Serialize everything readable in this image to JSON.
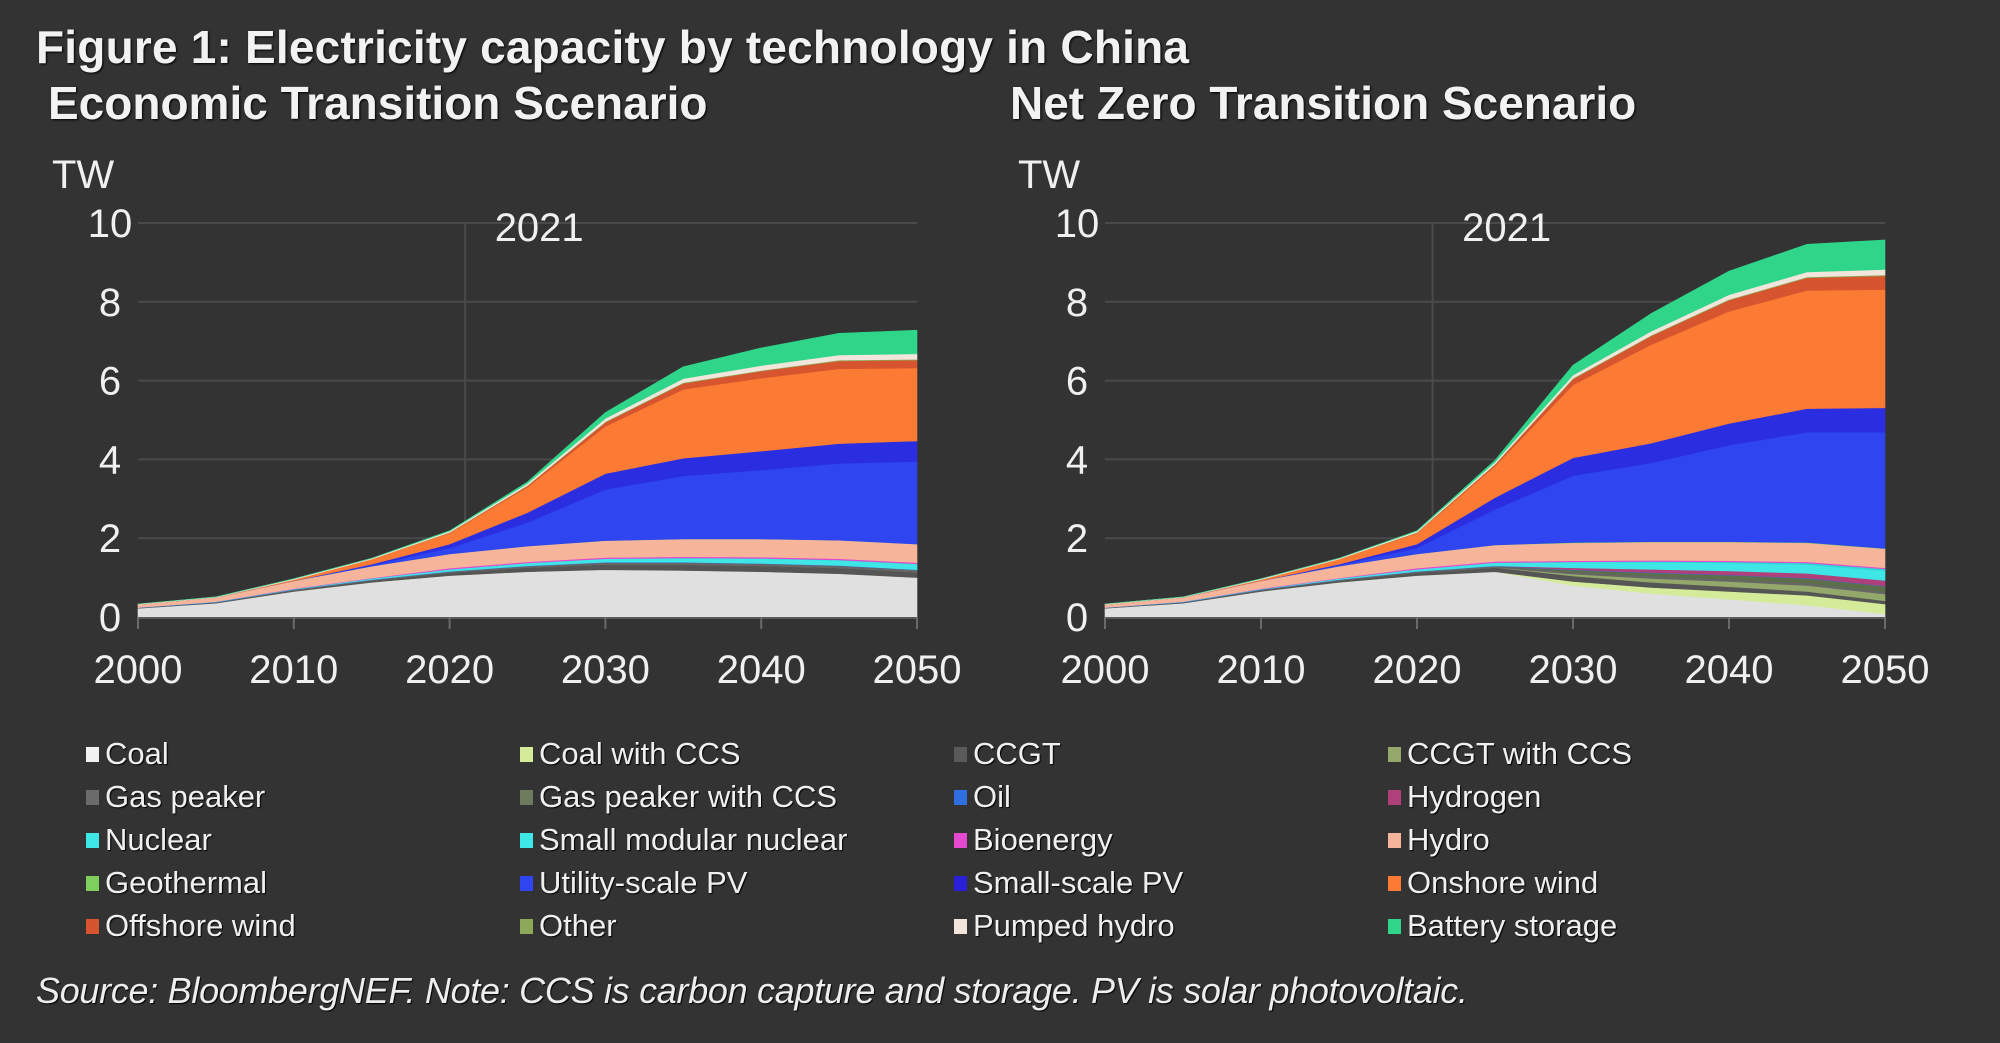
{
  "figure_title": "Figure 1: Electricity capacity by technology in China",
  "source_note": "Source: BloombergNEF.  Note: CCS is carbon capture and storage. PV is solar photovoltaic.",
  "chart_data": [
    {
      "type": "area",
      "stacked": true,
      "title": "Economic Transition Scenario",
      "ylabel": "TW",
      "xlabel": "",
      "ylim": [
        0,
        10
      ],
      "xlim": [
        2000,
        2050
      ],
      "yticks": [
        "0",
        "2",
        "4",
        "6",
        "8",
        "10"
      ],
      "xticks": [
        "2000",
        "2010",
        "2020",
        "2030",
        "2040",
        "2050"
      ],
      "annotation": {
        "x": 2021,
        "label": "2021"
      },
      "grid": true,
      "x": [
        2000,
        2005,
        2010,
        2015,
        2020,
        2025,
        2030,
        2035,
        2040,
        2045,
        2050
      ],
      "series": [
        {
          "name": "Coal",
          "color": "#e0e0e0",
          "values": [
            0.22,
            0.35,
            0.65,
            0.88,
            1.05,
            1.15,
            1.2,
            1.18,
            1.15,
            1.1,
            1.0
          ]
        },
        {
          "name": "Coal with CCS",
          "color": "#d4ec9a",
          "values": [
            0,
            0,
            0,
            0,
            0,
            0,
            0,
            0,
            0,
            0,
            0
          ]
        },
        {
          "name": "CCGT",
          "color": "#555555",
          "values": [
            0.01,
            0.02,
            0.03,
            0.05,
            0.08,
            0.11,
            0.14,
            0.15,
            0.15,
            0.15,
            0.14
          ]
        },
        {
          "name": "CCGT with CCS",
          "color": "#93a86a",
          "values": [
            0,
            0,
            0,
            0,
            0,
            0,
            0,
            0,
            0,
            0,
            0
          ]
        },
        {
          "name": "Gas peaker",
          "color": "#666666",
          "values": [
            0,
            0,
            0.01,
            0.01,
            0.02,
            0.03,
            0.04,
            0.05,
            0.05,
            0.05,
            0.05
          ]
        },
        {
          "name": "Gas peaker with CCS",
          "color": "#5c6e4a",
          "values": [
            0,
            0,
            0,
            0,
            0,
            0,
            0,
            0,
            0,
            0,
            0
          ]
        },
        {
          "name": "Oil",
          "color": "#2f6fe0",
          "values": [
            0.01,
            0.01,
            0.01,
            0.01,
            0.01,
            0.01,
            0.01,
            0.01,
            0.01,
            0.01,
            0.01
          ]
        },
        {
          "name": "Hydrogen",
          "color": "#b0407a",
          "values": [
            0,
            0,
            0,
            0,
            0,
            0,
            0,
            0,
            0,
            0,
            0
          ]
        },
        {
          "name": "Nuclear",
          "color": "#3ee6e6",
          "values": [
            0,
            0.01,
            0.01,
            0.03,
            0.05,
            0.07,
            0.09,
            0.1,
            0.12,
            0.13,
            0.14
          ]
        },
        {
          "name": "Small modular nuclear",
          "color": "#2fd6d6",
          "values": [
            0,
            0,
            0,
            0,
            0,
            0,
            0,
            0.01,
            0.01,
            0.01,
            0.01
          ]
        },
        {
          "name": "Bioenergy",
          "color": "#e44ad0",
          "values": [
            0,
            0,
            0.01,
            0.01,
            0.03,
            0.03,
            0.03,
            0.03,
            0.03,
            0.03,
            0.03
          ]
        },
        {
          "name": "Hydro",
          "color": "#f6b59a",
          "values": [
            0.08,
            0.11,
            0.2,
            0.3,
            0.36,
            0.4,
            0.43,
            0.45,
            0.46,
            0.47,
            0.47
          ]
        },
        {
          "name": "Geothermal",
          "color": "#7fcf5c",
          "values": [
            0,
            0,
            0,
            0,
            0,
            0,
            0,
            0,
            0,
            0,
            0
          ]
        },
        {
          "name": "Utility-scale PV",
          "color": "#2e45f0",
          "values": [
            0,
            0,
            0.0,
            0.03,
            0.15,
            0.6,
            1.3,
            1.6,
            1.75,
            1.95,
            2.1
          ]
        },
        {
          "name": "Small-scale PV",
          "color": "#2a2ee0",
          "values": [
            0,
            0,
            0,
            0.02,
            0.1,
            0.25,
            0.4,
            0.45,
            0.48,
            0.5,
            0.52
          ]
        },
        {
          "name": "Onshore wind",
          "color": "#fb7b34",
          "values": [
            0,
            0,
            0.03,
            0.13,
            0.28,
            0.65,
            1.2,
            1.75,
            1.85,
            1.9,
            1.85
          ]
        },
        {
          "name": "Offshore wind",
          "color": "#d7552e",
          "values": [
            0,
            0,
            0,
            0,
            0.01,
            0.03,
            0.1,
            0.15,
            0.18,
            0.2,
            0.2
          ]
        },
        {
          "name": "Other",
          "color": "#8ea85a",
          "values": [
            0,
            0,
            0,
            0,
            0.01,
            0.01,
            0.02,
            0.02,
            0.02,
            0.02,
            0.02
          ]
        },
        {
          "name": "Pumped hydro",
          "color": "#f2e6dc",
          "values": [
            0.01,
            0.01,
            0.02,
            0.02,
            0.03,
            0.05,
            0.08,
            0.1,
            0.12,
            0.13,
            0.14
          ]
        },
        {
          "name": "Battery storage",
          "color": "#2fd68a",
          "values": [
            0,
            0,
            0,
            0,
            0.01,
            0.04,
            0.15,
            0.3,
            0.45,
            0.55,
            0.6
          ]
        }
      ]
    },
    {
      "type": "area",
      "stacked": true,
      "title": "Net Zero Transition Scenario",
      "ylabel": "TW",
      "xlabel": "",
      "ylim": [
        0,
        10
      ],
      "xlim": [
        2000,
        2050
      ],
      "yticks": [
        "0",
        "2",
        "4",
        "6",
        "8",
        "10"
      ],
      "xticks": [
        "2000",
        "2010",
        "2020",
        "2030",
        "2040",
        "2050"
      ],
      "annotation": {
        "x": 2021,
        "label": "2021"
      },
      "grid": true,
      "x": [
        2000,
        2005,
        2010,
        2015,
        2020,
        2025,
        2030,
        2035,
        2040,
        2045,
        2050
      ],
      "series": [
        {
          "name": "Coal",
          "color": "#e0e0e0",
          "values": [
            0.22,
            0.35,
            0.65,
            0.88,
            1.05,
            1.15,
            0.8,
            0.6,
            0.45,
            0.3,
            0.08
          ]
        },
        {
          "name": "Coal with CCS",
          "color": "#d4ec9a",
          "values": [
            0,
            0,
            0,
            0,
            0,
            0,
            0.1,
            0.15,
            0.2,
            0.25,
            0.25
          ]
        },
        {
          "name": "CCGT",
          "color": "#555555",
          "values": [
            0.01,
            0.02,
            0.03,
            0.05,
            0.08,
            0.11,
            0.14,
            0.13,
            0.12,
            0.1,
            0.08
          ]
        },
        {
          "name": "CCGT with CCS",
          "color": "#93a86a",
          "values": [
            0,
            0,
            0,
            0,
            0,
            0,
            0.05,
            0.1,
            0.13,
            0.15,
            0.17
          ]
        },
        {
          "name": "Gas peaker",
          "color": "#666666",
          "values": [
            0,
            0,
            0.01,
            0.01,
            0.02,
            0.03,
            0.05,
            0.06,
            0.06,
            0.06,
            0.06
          ]
        },
        {
          "name": "Gas peaker with CCS",
          "color": "#5c6e4a",
          "values": [
            0,
            0,
            0,
            0,
            0,
            0,
            0.05,
            0.08,
            0.1,
            0.12,
            0.14
          ]
        },
        {
          "name": "Oil",
          "color": "#2f6fe0",
          "values": [
            0.01,
            0.01,
            0.01,
            0.01,
            0.01,
            0.01,
            0.01,
            0.01,
            0.01,
            0.01,
            0.01
          ]
        },
        {
          "name": "Hydrogen",
          "color": "#b0407a",
          "values": [
            0,
            0,
            0,
            0,
            0,
            0,
            0.05,
            0.08,
            0.1,
            0.12,
            0.14
          ]
        },
        {
          "name": "Nuclear",
          "color": "#3ee6e6",
          "values": [
            0,
            0.01,
            0.01,
            0.03,
            0.05,
            0.08,
            0.14,
            0.18,
            0.2,
            0.22,
            0.24
          ]
        },
        {
          "name": "Small modular nuclear",
          "color": "#2fd6d6",
          "values": [
            0,
            0,
            0,
            0,
            0,
            0,
            0.01,
            0.02,
            0.03,
            0.04,
            0.05
          ]
        },
        {
          "name": "Bioenergy",
          "color": "#e44ad0",
          "values": [
            0,
            0,
            0.01,
            0.01,
            0.03,
            0.03,
            0.03,
            0.03,
            0.03,
            0.03,
            0.03
          ]
        },
        {
          "name": "Hydro",
          "color": "#f6b59a",
          "values": [
            0.08,
            0.11,
            0.2,
            0.3,
            0.36,
            0.42,
            0.45,
            0.46,
            0.47,
            0.48,
            0.48
          ]
        },
        {
          "name": "Geothermal",
          "color": "#7fcf5c",
          "values": [
            0,
            0,
            0,
            0,
            0,
            0,
            0.01,
            0.01,
            0.01,
            0.01,
            0.01
          ]
        },
        {
          "name": "Utility-scale PV",
          "color": "#2e45f0",
          "values": [
            0,
            0,
            0.0,
            0.03,
            0.15,
            0.9,
            1.7,
            2.0,
            2.45,
            2.8,
            2.95
          ]
        },
        {
          "name": "Small-scale PV",
          "color": "#2a2ee0",
          "values": [
            0,
            0,
            0,
            0.02,
            0.1,
            0.3,
            0.45,
            0.5,
            0.55,
            0.6,
            0.62
          ]
        },
        {
          "name": "Onshore wind",
          "color": "#fb7b34",
          "values": [
            0,
            0,
            0.03,
            0.13,
            0.28,
            0.8,
            1.85,
            2.5,
            2.85,
            3.0,
            3.0
          ]
        },
        {
          "name": "Offshore wind",
          "color": "#d7552e",
          "values": [
            0,
            0,
            0,
            0,
            0.01,
            0.04,
            0.15,
            0.22,
            0.28,
            0.32,
            0.35
          ]
        },
        {
          "name": "Other",
          "color": "#8ea85a",
          "values": [
            0,
            0,
            0,
            0,
            0.01,
            0.01,
            0.02,
            0.02,
            0.02,
            0.02,
            0.02
          ]
        },
        {
          "name": "Pumped hydro",
          "color": "#f2e6dc",
          "values": [
            0.01,
            0.01,
            0.02,
            0.02,
            0.03,
            0.05,
            0.08,
            0.1,
            0.12,
            0.13,
            0.14
          ]
        },
        {
          "name": "Battery storage",
          "color": "#2fd68a",
          "values": [
            0,
            0,
            0,
            0,
            0.01,
            0.05,
            0.25,
            0.45,
            0.6,
            0.7,
            0.75
          ]
        }
      ]
    }
  ],
  "legend": [
    {
      "label": "Coal",
      "color": "#f2f2f2"
    },
    {
      "label": "Coal with CCS",
      "color": "#d4ec9a"
    },
    {
      "label": "CCGT",
      "color": "#5a5a5a"
    },
    {
      "label": "CCGT with CCS",
      "color": "#93a86a"
    },
    {
      "label": "Gas peaker",
      "color": "#6b6b6b"
    },
    {
      "label": "Gas peaker with CCS",
      "color": "#6e7a5c"
    },
    {
      "label": "Oil",
      "color": "#2f6fe0"
    },
    {
      "label": "Hydrogen",
      "color": "#b0407a"
    },
    {
      "label": "Nuclear",
      "color": "#3ee6e6"
    },
    {
      "label": "Small modular nuclear",
      "color": "#3ee6e6"
    },
    {
      "label": "Bioenergy",
      "color": "#e44ad0"
    },
    {
      "label": "Hydro",
      "color": "#f6b59a"
    },
    {
      "label": "Geothermal",
      "color": "#7fcf5c"
    },
    {
      "label": "Utility-scale PV",
      "color": "#2e45f0"
    },
    {
      "label": "Small-scale PV",
      "color": "#2a20d8"
    },
    {
      "label": "Onshore wind",
      "color": "#fb7b34"
    },
    {
      "label": "Offshore wind",
      "color": "#d7552e"
    },
    {
      "label": "Other",
      "color": "#8ea85a"
    },
    {
      "label": "Pumped hydro",
      "color": "#f2e6dc"
    },
    {
      "label": "Battery storage",
      "color": "#2fd68a"
    }
  ]
}
